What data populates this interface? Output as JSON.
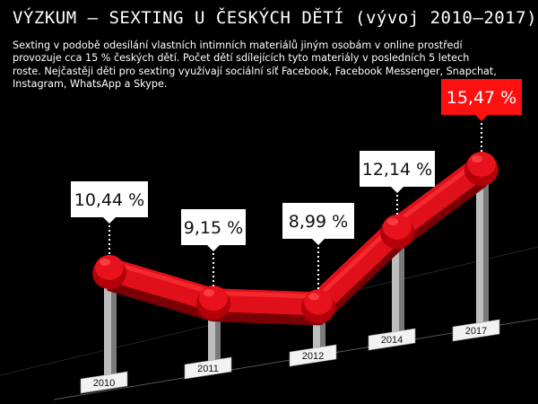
{
  "title": "VÝZKUM – SEXTING U ČESKÝCH DĚTÍ (vývoj 2010–2017)",
  "description": "Sexting v podobě odesílání vlastních intimních materiálů jiným osobám v online prostředí provozuje cca 15 % českých dětí. Počet dětí sdílejících tyto materiály v posledních 5 letech roste. Nejčastěji děti pro sexting využívají sociální síť Facebook, Facebook Messenger, Snapchat, Instagram, WhatsApp a Skype.",
  "colors": {
    "background": "#000000",
    "line": "#e0101a",
    "highlight": "#ff1010",
    "label_box": "#ffffff"
  },
  "chart_data": {
    "type": "line",
    "categories": [
      "2010",
      "2011",
      "2012",
      "2014",
      "2017"
    ],
    "values": [
      10.44,
      9.15,
      8.99,
      12.14,
      15.47
    ],
    "value_labels": [
      "10,44 %",
      "9,15 %",
      "8,99 %",
      "12,14 %",
      "15,47 %"
    ],
    "highlighted_category": "2017",
    "unit": "%",
    "grid": false,
    "legend": "none"
  }
}
